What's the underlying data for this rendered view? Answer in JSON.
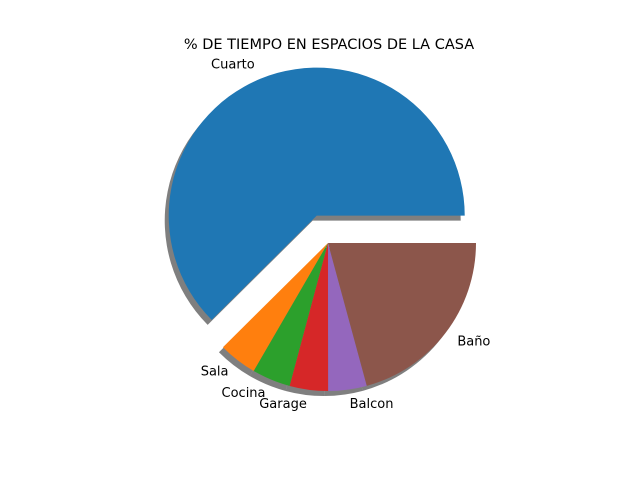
{
  "chart_data": {
    "type": "pie",
    "title": "% DE TIEMPO EN ESPACIOS DE LA CASA",
    "slices": [
      {
        "label": "Cuarto",
        "value": 62.5,
        "color": "#1f77b4",
        "exploded": true
      },
      {
        "label": "Sala",
        "value": 4.2,
        "color": "#ff7f0e",
        "exploded": false
      },
      {
        "label": "Cocina",
        "value": 4.2,
        "color": "#2ca02c",
        "exploded": false
      },
      {
        "label": "Garage",
        "value": 4.2,
        "color": "#d62728",
        "exploded": false
      },
      {
        "label": "Balcon",
        "value": 4.2,
        "color": "#9467bd",
        "exploded": false
      },
      {
        "label": "Baño",
        "value": 20.8,
        "color": "#8c564b",
        "exploded": false
      }
    ],
    "shadow": true,
    "start_angle": 0
  }
}
